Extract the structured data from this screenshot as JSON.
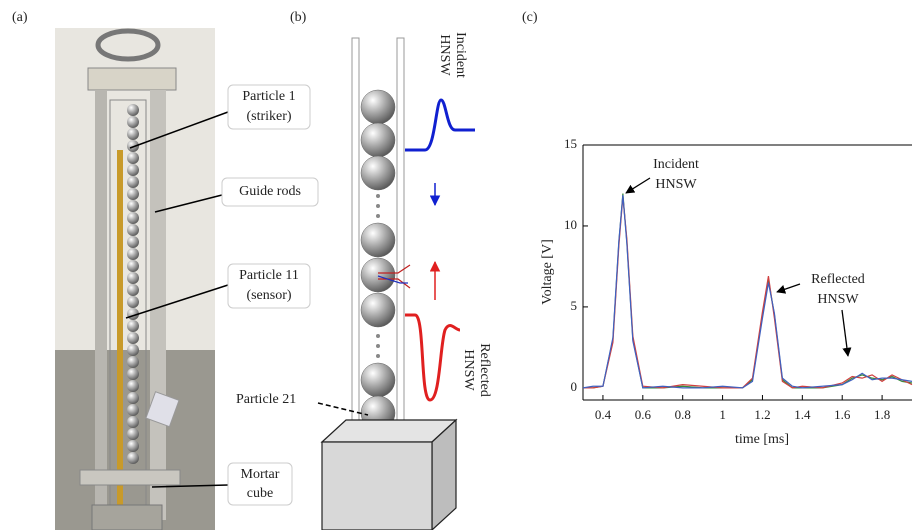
{
  "panels": {
    "a": "(a)",
    "b": "(b)",
    "c": "(c)"
  },
  "photo_callouts": [
    [
      "Particle 1",
      "(striker)"
    ],
    [
      "Guide rods"
    ],
    [
      "Particle 11",
      "(sensor)"
    ],
    [
      "Mortar",
      "cube"
    ]
  ],
  "diagram_labels": {
    "incident": [
      "Incident",
      "HNSW"
    ],
    "reflected": [
      "Reflected",
      "HNSW"
    ],
    "particle21": "Particle 21"
  },
  "chart_data": {
    "type": "line",
    "xlabel": "time [ms]",
    "ylabel": "Voltage [V]",
    "xlim": [
      0.3,
      1.95
    ],
    "xticks": [
      0.4,
      0.6,
      0.8,
      1,
      1.2,
      1.4,
      1.6,
      1.8
    ],
    "ylim": [
      -0.75,
      15
    ],
    "yticks": [
      0,
      5,
      10,
      15
    ],
    "annotations": [
      [
        "Incident",
        "HNSW"
      ],
      [
        "Reflected",
        "HNSW"
      ]
    ],
    "x": [
      0.3,
      0.35,
      0.4,
      0.45,
      0.48,
      0.5,
      0.52,
      0.55,
      0.6,
      0.7,
      0.8,
      0.9,
      1.0,
      1.1,
      1.15,
      1.2,
      1.23,
      1.26,
      1.3,
      1.35,
      1.4,
      1.5,
      1.6,
      1.65,
      1.7,
      1.75,
      1.8,
      1.85,
      1.9,
      1.95
    ],
    "series": [
      {
        "color": "#3a8a3a",
        "values": [
          0,
          0,
          0.1,
          3,
          9,
          12,
          9,
          3,
          0,
          0,
          0.1,
          0,
          0,
          0,
          0.5,
          4.5,
          6.7,
          4.5,
          0.5,
          0,
          0,
          0,
          0.2,
          0.6,
          0.8,
          0.6,
          0.5,
          0.7,
          0.4,
          0.3
        ]
      },
      {
        "color": "#d04040",
        "values": [
          0,
          0,
          0.1,
          2.8,
          8.8,
          11.8,
          9.2,
          3.2,
          0.1,
          0,
          0.2,
          0.1,
          0,
          0,
          0.6,
          4.7,
          6.9,
          4.3,
          0.4,
          0,
          0.1,
          0,
          0.3,
          0.7,
          0.6,
          0.8,
          0.4,
          0.8,
          0.5,
          0.2
        ]
      },
      {
        "color": "#4060c0",
        "values": [
          0,
          0.1,
          0.1,
          3.1,
          9.1,
          11.9,
          8.9,
          2.9,
          0,
          0.1,
          0,
          0,
          0.1,
          0,
          0.4,
          4.3,
          6.5,
          4.6,
          0.6,
          0.1,
          0,
          0.1,
          0.2,
          0.5,
          0.9,
          0.5,
          0.6,
          0.6,
          0.5,
          0.4
        ]
      }
    ]
  }
}
